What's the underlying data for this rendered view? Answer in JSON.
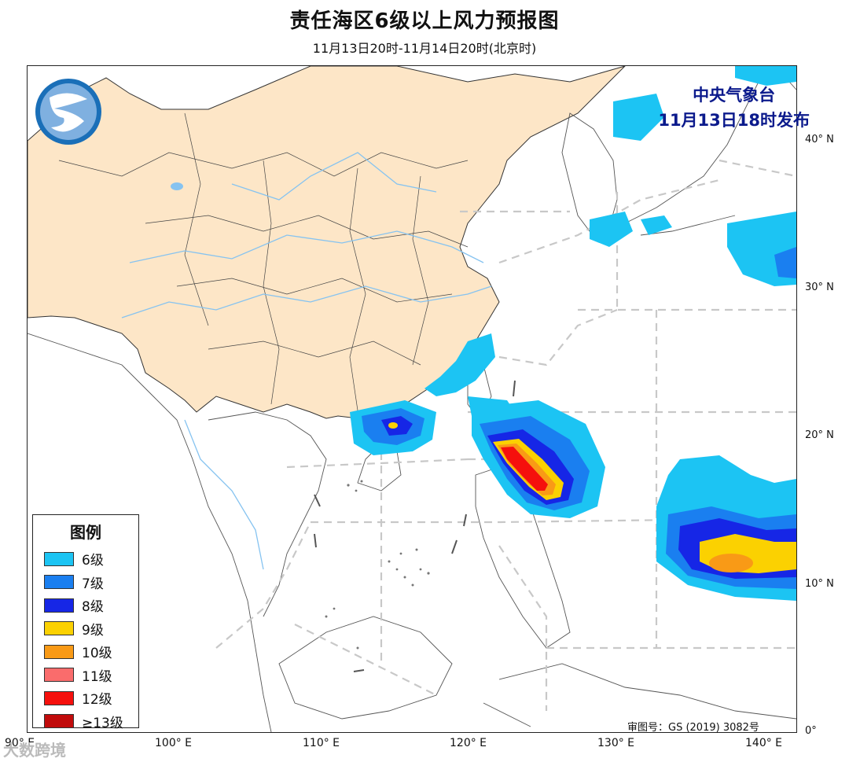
{
  "header": {
    "title": "责任海区6级以上风力预报图",
    "subtitle": "11月13日20时-11月14日20时(北京时)"
  },
  "issuer": {
    "agency": "中央气象台",
    "issue_time": "11月13日18时发布"
  },
  "axes": {
    "latitude_labels": [
      "40° N",
      "30° N",
      "20° N",
      "10° N",
      "0°"
    ],
    "longitude_labels": [
      "90° E",
      "100° E",
      "110° E",
      "120° E",
      "130° E",
      "140° E"
    ]
  },
  "legend": {
    "title": "图例",
    "items": [
      {
        "label": "6级",
        "color": "#1cc4f3"
      },
      {
        "label": "7级",
        "color": "#1a7ff0"
      },
      {
        "label": "8级",
        "color": "#1626e6"
      },
      {
        "label": "9级",
        "color": "#fbd101"
      },
      {
        "label": "10级",
        "color": "#f99a16"
      },
      {
        "label": "11级",
        "color": "#fa6c6c"
      },
      {
        "label": "12级",
        "color": "#f5100d"
      },
      {
        "label": "≥13级",
        "color": "#c10b0b"
      }
    ]
  },
  "review_number": "审图号：GS (2019) 3082号",
  "watermark": "大数跨境",
  "colors": {
    "land_china": "#fde6c7",
    "border": "#333333",
    "sea_zone_line": "#c8c8c8",
    "river": "#86c3f0"
  }
}
